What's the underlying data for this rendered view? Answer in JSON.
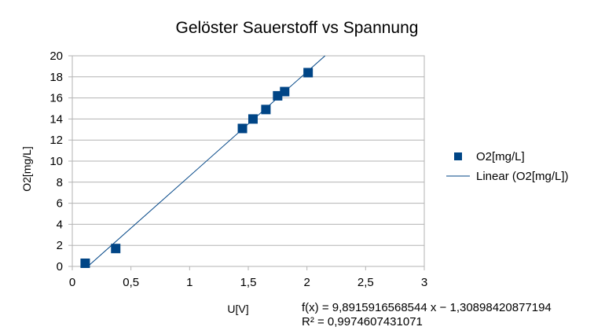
{
  "chart_data": {
    "type": "scatter",
    "title": "Gelöster Sauerstoff vs Spannung",
    "xlabel": "U[V]",
    "ylabel": "O2[mg/L]",
    "xlim": [
      0,
      3
    ],
    "ylim": [
      0,
      20
    ],
    "x_ticks": [
      "0",
      "0,5",
      "1",
      "1,5",
      "2",
      "2,5",
      "3"
    ],
    "y_ticks": [
      "0",
      "2",
      "4",
      "6",
      "8",
      "10",
      "12",
      "14",
      "16",
      "18",
      "20"
    ],
    "grid": true,
    "legend_position": "right",
    "series": [
      {
        "name": "O2[mg/L]",
        "marker": "square",
        "color": "#004586",
        "points": [
          {
            "x": 0.11,
            "y": 0.3
          },
          {
            "x": 0.37,
            "y": 1.7
          },
          {
            "x": 1.45,
            "y": 13.1
          },
          {
            "x": 1.54,
            "y": 14.0
          },
          {
            "x": 1.65,
            "y": 14.9
          },
          {
            "x": 1.75,
            "y": 16.2
          },
          {
            "x": 1.81,
            "y": 16.6
          },
          {
            "x": 2.01,
            "y": 18.4
          }
        ]
      }
    ],
    "trendline": {
      "name": "Linear (O2[mg/L])",
      "slope": 9.8915916568544,
      "intercept": -1.30898420877194,
      "color": "#004586",
      "equation": "f(x) = 9,8915916568544 x − 1,30898420877194",
      "r_squared": "R² = 0,9974607431071"
    }
  }
}
